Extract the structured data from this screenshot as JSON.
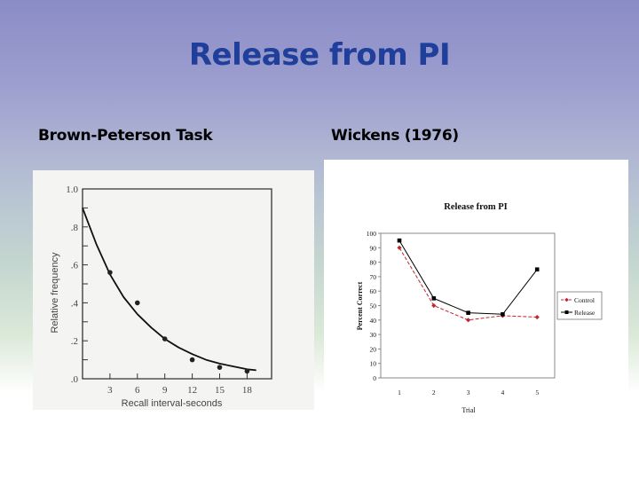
{
  "slide": {
    "title": "Release from PI",
    "left_heading": "Brown-Peterson Task",
    "right_heading": "Wickens (1976)"
  },
  "colors": {
    "title": "#1f3f9a",
    "control": "#c0272d",
    "release": "#000000"
  },
  "chart_data": [
    {
      "type": "scatter",
      "title": "",
      "xlabel": "Recall interval-seconds",
      "ylabel": "Relative frequency",
      "x": [
        3,
        6,
        9,
        12,
        15,
        18
      ],
      "values": [
        0.56,
        0.4,
        0.21,
        0.1,
        0.06,
        0.04
      ],
      "fit_curve": {
        "x": [
          0,
          1.5,
          3,
          4.5,
          6,
          7.5,
          9,
          10.5,
          12,
          13.5,
          15,
          16.5,
          18,
          19
        ],
        "y": [
          0.9,
          0.71,
          0.55,
          0.43,
          0.34,
          0.27,
          0.21,
          0.165,
          0.13,
          0.1,
          0.08,
          0.065,
          0.05,
          0.045
        ]
      },
      "xticks": [
        "3",
        "6",
        "9",
        "12",
        "15",
        "18"
      ],
      "yticks": [
        ".0",
        ".2",
        ".4",
        ".6",
        ".8",
        "1.0"
      ],
      "xlim": [
        0,
        21
      ],
      "ylim": [
        0,
        1.0
      ],
      "grid": false
    },
    {
      "type": "line",
      "title": "Release from PI",
      "xlabel": "Trial",
      "ylabel": "Percent Correct",
      "categories": [
        "1",
        "2",
        "3",
        "4",
        "5"
      ],
      "series": [
        {
          "name": "Control",
          "values": [
            90,
            50,
            40,
            43,
            42
          ],
          "style": "dashed",
          "marker": "diamond"
        },
        {
          "name": "Release",
          "values": [
            95,
            55,
            45,
            44,
            75
          ],
          "style": "solid",
          "marker": "square"
        }
      ],
      "yticks": [
        "0",
        "10",
        "20",
        "30",
        "40",
        "50",
        "60",
        "70",
        "80",
        "90",
        "100"
      ],
      "ylim": [
        0,
        100
      ],
      "legend_position": "right",
      "grid": false
    }
  ]
}
